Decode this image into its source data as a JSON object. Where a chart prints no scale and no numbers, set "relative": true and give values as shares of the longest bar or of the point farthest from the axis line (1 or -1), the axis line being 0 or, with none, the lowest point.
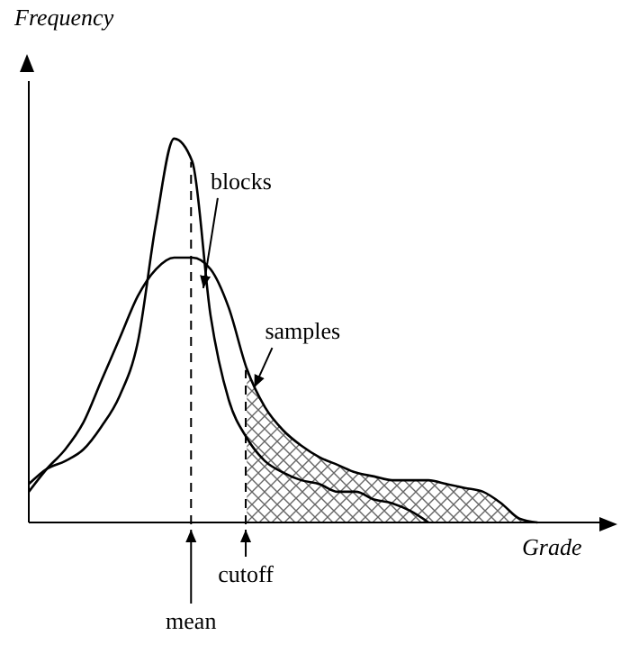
{
  "chart_data": {
    "type": "line",
    "relative": true,
    "xlabel": "Grade",
    "ylabel": "Frequency",
    "marker": "none",
    "line_style": "solid",
    "categories": [
      null,
      null,
      null,
      null,
      null,
      null,
      null,
      null,
      null,
      null,
      null,
      null,
      null,
      null,
      null,
      null,
      null,
      null,
      null,
      null,
      null,
      null,
      null,
      null,
      null,
      null,
      null,
      null,
      null
    ],
    "series": [
      {
        "name": "blocks",
        "color": "#000000",
        "values": [
          0.1,
          0.14,
          0.16,
          0.19,
          0.25,
          0.33,
          0.47,
          0.78,
          1,
          0.94,
          0.54,
          0.32,
          0.22,
          0.16,
          0.13,
          0.11,
          0.1,
          0.08,
          0.08,
          0.06,
          0.05,
          0.03,
          0,
          null,
          null,
          null,
          null,
          null,
          null
        ]
      },
      {
        "name": "samples",
        "color": "#000000",
        "values": [
          0.08,
          0.14,
          0.19,
          0.26,
          0.37,
          0.48,
          0.59,
          0.66,
          0.69,
          0.69,
          0.66,
          0.56,
          0.4,
          0.3,
          0.24,
          0.2,
          0.17,
          0.15,
          0.13,
          0.12,
          0.11,
          0.11,
          0.11,
          0.1,
          0.09,
          0.08,
          0.05,
          0.01,
          0
        ]
      },
      {
        "type": "area",
        "color": "#666666",
        "values": [
          null,
          null,
          null,
          null,
          null,
          null,
          null,
          null,
          null,
          null,
          null,
          null,
          0.4,
          0.3,
          0.24,
          0.2,
          0.17,
          0.15,
          0.13,
          0.12,
          0.11,
          0.11,
          0.11,
          0.1,
          0.09,
          0.08,
          0.05,
          0.01,
          0
        ]
      }
    ],
    "annotations": [
      "mean",
      "cutoff"
    ]
  }
}
